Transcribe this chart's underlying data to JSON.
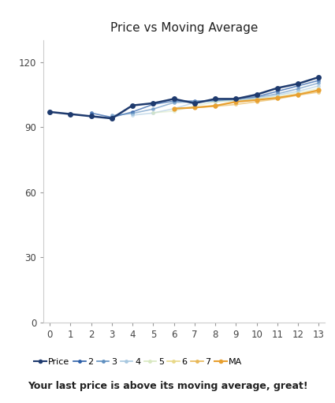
{
  "title": "Price vs Moving Average",
  "subtitle": "Your last price is above its moving average, great!",
  "x": [
    0,
    1,
    2,
    3,
    4,
    5,
    6,
    7,
    8,
    9,
    10,
    11,
    12,
    13
  ],
  "price": [
    97,
    96,
    95,
    94,
    100,
    101,
    103,
    101,
    103,
    103,
    105,
    108,
    110,
    113
  ],
  "ma2": [
    null,
    null,
    96.5,
    94.5,
    97.0,
    100.5,
    102.0,
    102.0,
    102.0,
    103.0,
    104.0,
    106.5,
    109.0,
    111.5
  ],
  "ma3": [
    null,
    null,
    null,
    95.33,
    96.33,
    98.33,
    101.33,
    101.67,
    102.33,
    102.33,
    103.67,
    105.33,
    107.67,
    110.33
  ],
  "ma4": [
    null,
    null,
    null,
    null,
    95.5,
    96.5,
    98.5,
    101.25,
    101.75,
    102.5,
    103.0,
    104.75,
    106.5,
    109.0
  ],
  "ma5": [
    null,
    null,
    null,
    null,
    null,
    96.6,
    97.4,
    99.8,
    101.6,
    102.2,
    103.0,
    104.2,
    105.8,
    107.8
  ],
  "ma6": [
    null,
    null,
    null,
    null,
    null,
    null,
    98.5,
    99.0,
    99.83,
    101.67,
    102.5,
    103.5,
    105.0,
    107.0
  ],
  "ma7": [
    null,
    null,
    null,
    null,
    null,
    null,
    null,
    99.0,
    99.57,
    100.43,
    101.71,
    103.0,
    104.71,
    106.14
  ],
  "ma": [
    null,
    null,
    null,
    null,
    null,
    null,
    98.5,
    99.0,
    99.83,
    101.67,
    102.5,
    103.5,
    105.0,
    107.0
  ],
  "price_color": "#1e3a6e",
  "ma2_color": "#2b5ea7",
  "ma3_color": "#6090c0",
  "ma4_color": "#a8c8e0",
  "ma5_color": "#d8e8c0",
  "ma6_color": "#e8d888",
  "ma7_color": "#e8b858",
  "ma_color": "#e8a030",
  "ylim": [
    0,
    130
  ],
  "yticks": [
    0,
    30,
    60,
    90,
    120
  ],
  "xlim": [
    -0.3,
    13.3
  ],
  "xticks": [
    0,
    1,
    2,
    3,
    4,
    5,
    6,
    7,
    8,
    9,
    10,
    11,
    12,
    13
  ],
  "bg_main": "#ffffff",
  "bg_footer": "#f0f0f0",
  "tick_color": "#999999",
  "spine_color": "#cccccc"
}
